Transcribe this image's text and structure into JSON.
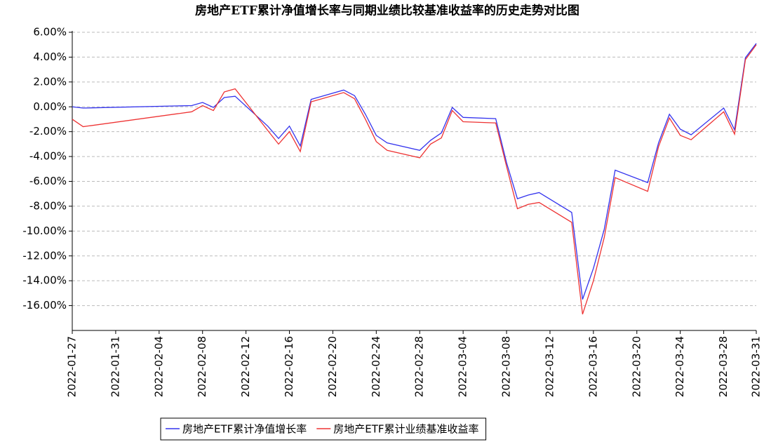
{
  "chart_data": {
    "type": "line",
    "title": "房地产ETF累计净值增长率与同期业绩比较基准收益率的历史走势对比图",
    "x": [
      "2022-01-27",
      "2022-01-28",
      "2022-02-07",
      "2022-02-08",
      "2022-02-09",
      "2022-02-10",
      "2022-02-11",
      "2022-02-14",
      "2022-02-15",
      "2022-02-16",
      "2022-02-17",
      "2022-02-18",
      "2022-02-21",
      "2022-02-22",
      "2022-02-23",
      "2022-02-24",
      "2022-02-25",
      "2022-02-28",
      "2022-03-01",
      "2022-03-02",
      "2022-03-03",
      "2022-03-04",
      "2022-03-07",
      "2022-03-08",
      "2022-03-09",
      "2022-03-10",
      "2022-03-11",
      "2022-03-14",
      "2022-03-15",
      "2022-03-16",
      "2022-03-17",
      "2022-03-18",
      "2022-03-21",
      "2022-03-22",
      "2022-03-23",
      "2022-03-24",
      "2022-03-25",
      "2022-03-28",
      "2022-03-29",
      "2022-03-30",
      "2022-03-31"
    ],
    "series": [
      {
        "name": "房地产ETF累计净值增长率",
        "color": "#3333ee",
        "values": [
          0.0,
          -0.1,
          0.1,
          0.35,
          -0.05,
          0.75,
          0.85,
          -1.55,
          -2.55,
          -1.55,
          -3.15,
          0.6,
          1.35,
          0.9,
          -0.6,
          -2.3,
          -2.9,
          -3.5,
          -2.7,
          -2.1,
          -0.05,
          -0.85,
          -0.95,
          -4.5,
          -7.4,
          -7.1,
          -6.9,
          -8.5,
          -15.5,
          -13.0,
          -9.85,
          -5.1,
          -6.1,
          -2.9,
          -0.6,
          -1.8,
          -2.25,
          -0.1,
          -1.85,
          3.95,
          5.1
        ]
      },
      {
        "name": "房地产ETF累计业绩基准收益率",
        "color": "#ee3333",
        "values": [
          -1.0,
          -1.6,
          -0.4,
          0.1,
          -0.3,
          1.2,
          1.45,
          -1.9,
          -3.0,
          -2.0,
          -3.6,
          0.4,
          1.15,
          0.65,
          -1.0,
          -2.8,
          -3.5,
          -4.1,
          -3.0,
          -2.5,
          -0.3,
          -1.2,
          -1.3,
          -4.8,
          -8.2,
          -7.85,
          -7.7,
          -9.3,
          -16.7,
          -14.0,
          -10.5,
          -5.7,
          -6.8,
          -3.2,
          -0.9,
          -2.3,
          -2.65,
          -0.4,
          -2.2,
          3.8,
          5.0
        ]
      }
    ],
    "xlim": [
      "2022-01-27",
      "2022-03-31"
    ],
    "xticks": [
      "2022-01-27",
      "2022-01-31",
      "2022-02-04",
      "2022-02-08",
      "2022-02-12",
      "2022-02-16",
      "2022-02-20",
      "2022-02-24",
      "2022-02-28",
      "2022-03-04",
      "2022-03-08",
      "2022-03-12",
      "2022-03-16",
      "2022-03-20",
      "2022-03-24",
      "2022-03-28",
      "2022-03-31"
    ],
    "ylim": [
      -18,
      6
    ],
    "yticks": [
      {
        "value": -16,
        "label": "-16.00%"
      },
      {
        "value": -14,
        "label": "-14.00%"
      },
      {
        "value": -12,
        "label": "-12.00%"
      },
      {
        "value": -10,
        "label": "-10.00%"
      },
      {
        "value": -8,
        "label": "-8.00%"
      },
      {
        "value": -6,
        "label": "-6.00%"
      },
      {
        "value": -4,
        "label": "-4.00%"
      },
      {
        "value": -2,
        "label": "-2.00%"
      },
      {
        "value": 0,
        "label": "0.00%"
      },
      {
        "value": 2,
        "label": "2.00%"
      },
      {
        "value": 4,
        "label": "4.00%"
      },
      {
        "value": 6,
        "label": "6.00%"
      }
    ],
    "grid": true
  }
}
